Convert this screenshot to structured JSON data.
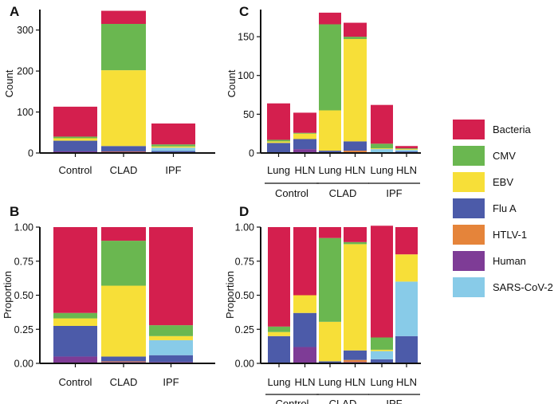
{
  "colors": {
    "Bacteria": "#D41F4E",
    "CMV": "#6AB750",
    "EBV": "#F7DF38",
    "Flu A": "#4C5BA9",
    "HTLV-1": "#E5843A",
    "Human": "#7E3C96",
    "SARS-CoV-2": "#88CBE8"
  },
  "legend": {
    "entries": [
      "Bacteria",
      "CMV",
      "EBV",
      "Flu A",
      "HTLV-1",
      "Human",
      "SARS-CoV-2"
    ]
  },
  "chart_data": [
    {
      "panel": "A",
      "type": "bar",
      "stacked": true,
      "ylabel": "Count",
      "ylim": [
        0,
        350
      ],
      "yticks": [
        0,
        100,
        200,
        300
      ],
      "categories": [
        "Control",
        "CLAD",
        "IPF"
      ],
      "series": [
        {
          "name": "Human",
          "values": [
            4,
            3,
            1
          ]
        },
        {
          "name": "HTLV-1",
          "values": [
            0,
            1,
            0
          ]
        },
        {
          "name": "Flu A",
          "values": [
            26,
            13,
            4
          ]
        },
        {
          "name": "SARS-CoV-2",
          "values": [
            0,
            0,
            8
          ]
        },
        {
          "name": "EBV",
          "values": [
            6,
            185,
            3
          ]
        },
        {
          "name": "CMV",
          "values": [
            4,
            113,
            5
          ]
        },
        {
          "name": "Bacteria",
          "values": [
            73,
            32,
            51
          ]
        }
      ]
    },
    {
      "panel": "C",
      "type": "bar",
      "stacked": true,
      "ylabel": "Count",
      "ylim": [
        0,
        185
      ],
      "yticks": [
        0,
        50,
        100,
        150
      ],
      "categories": [
        "Lung",
        "HLN",
        "Lung",
        "HLN",
        "Lung",
        "HLN"
      ],
      "groups": [
        {
          "label": "Control",
          "span": [
            0,
            1
          ]
        },
        {
          "label": "CLAD",
          "span": [
            2,
            3
          ]
        },
        {
          "label": "IPF",
          "span": [
            4,
            5
          ]
        }
      ],
      "series": [
        {
          "name": "Human",
          "values": [
            0,
            5,
            1,
            1,
            0,
            0
          ]
        },
        {
          "name": "HTLV-1",
          "values": [
            0,
            0,
            0,
            2,
            0,
            0
          ]
        },
        {
          "name": "Flu A",
          "values": [
            13,
            13,
            2,
            12,
            1,
            2
          ]
        },
        {
          "name": "SARS-CoV-2",
          "values": [
            0,
            0,
            0,
            0,
            4,
            2
          ]
        },
        {
          "name": "EBV",
          "values": [
            2,
            7,
            52,
            132,
            1,
            1
          ]
        },
        {
          "name": "CMV",
          "values": [
            2,
            1,
            111,
            3,
            6,
            1
          ]
        },
        {
          "name": "Bacteria",
          "values": [
            47,
            26,
            15,
            18,
            50,
            3
          ]
        }
      ]
    },
    {
      "panel": "B",
      "type": "bar",
      "stacked": true,
      "ylabel": "Proportion",
      "ylim": [
        0,
        1
      ],
      "yticks": [
        "0.00",
        "0.25",
        "0.50",
        "0.75",
        "1.00"
      ],
      "categories": [
        "Control",
        "CLAD",
        "IPF"
      ],
      "series": [
        {
          "name": "Human",
          "values": [
            0.05,
            0.01,
            0.01
          ]
        },
        {
          "name": "HTLV-1",
          "values": [
            0,
            0.005,
            0
          ]
        },
        {
          "name": "Flu A",
          "values": [
            0.225,
            0.035,
            0.05
          ]
        },
        {
          "name": "SARS-CoV-2",
          "values": [
            0,
            0,
            0.11
          ]
        },
        {
          "name": "EBV",
          "values": [
            0.055,
            0.52,
            0.03
          ]
        },
        {
          "name": "CMV",
          "values": [
            0.04,
            0.33,
            0.08
          ]
        },
        {
          "name": "Bacteria",
          "values": [
            0.63,
            0.1,
            0.72
          ]
        }
      ]
    },
    {
      "panel": "D",
      "type": "bar",
      "stacked": true,
      "ylabel": "Proportion",
      "ylim": [
        0,
        1
      ],
      "yticks": [
        "0.00",
        "0.25",
        "0.50",
        "0.75",
        "1.00"
      ],
      "categories": [
        "Lung",
        "HLN",
        "Lung",
        "HLN",
        "Lung",
        "HLN"
      ],
      "groups": [
        {
          "label": "Control",
          "span": [
            0,
            1
          ]
        },
        {
          "label": "CLAD",
          "span": [
            2,
            3
          ]
        },
        {
          "label": "IPF",
          "span": [
            4,
            5
          ]
        }
      ],
      "series": [
        {
          "name": "Human",
          "values": [
            0,
            0.12,
            0.005,
            0.01,
            0,
            0
          ]
        },
        {
          "name": "HTLV-1",
          "values": [
            0,
            0,
            0,
            0.015,
            0,
            0
          ]
        },
        {
          "name": "Flu A",
          "values": [
            0.2,
            0.25,
            0.01,
            0.07,
            0.03,
            0.2
          ]
        },
        {
          "name": "SARS-CoV-2",
          "values": [
            0,
            0,
            0,
            0,
            0.06,
            0.4
          ]
        },
        {
          "name": "EBV",
          "values": [
            0.03,
            0.13,
            0.29,
            0.78,
            0.01,
            0.2
          ]
        },
        {
          "name": "CMV",
          "values": [
            0.04,
            0,
            0.615,
            0.015,
            0.09,
            0
          ]
        },
        {
          "name": "Bacteria",
          "values": [
            0.73,
            0.5,
            0.08,
            0.11,
            0.82,
            0.2
          ]
        }
      ]
    }
  ],
  "panel_letters": [
    "A",
    "C",
    "B",
    "D"
  ]
}
